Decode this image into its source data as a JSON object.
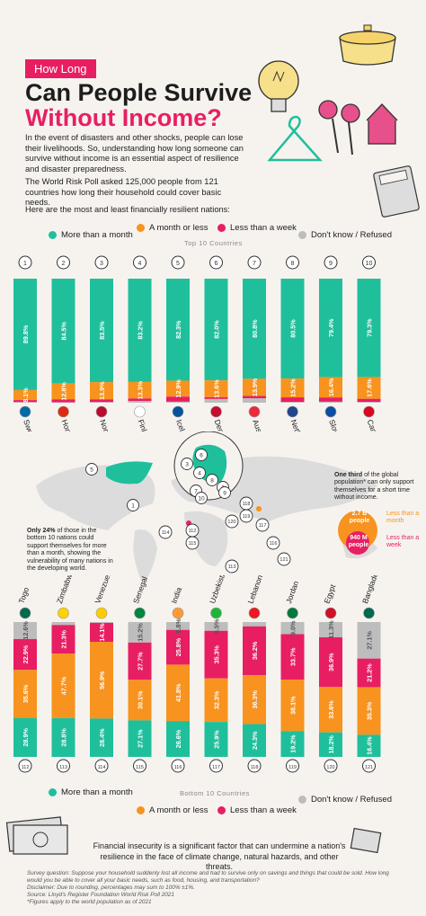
{
  "header": {
    "tag": "How Long",
    "title_line1": "Can People Survive",
    "title_line2": "Without Income?",
    "intro_p1": "In the event of disasters and other shocks, people can lose their livelihoods. So, understanding how long someone can survive without income is an essential aspect of resilience and disaster preparedness.",
    "intro_p2": "The World Risk Poll asked 125,000 people from 121 countries how long their household could cover basic needs.",
    "intro_p3": "Here are the most and least financially resilient nations:"
  },
  "legend": {
    "items": [
      "More than a month",
      "A month or less",
      "Less than a week",
      "Don't know / Refused"
    ],
    "colors": [
      "#1fbf9c",
      "#f7931e",
      "#e81e63",
      "#bdbdbd"
    ]
  },
  "section_labels": {
    "top": "Top 10 Countries",
    "bottom": "Bottom 10 Countries"
  },
  "chart_data": [
    {
      "type": "bar",
      "title": "Top 10 Countries",
      "ranks": [
        "1",
        "2",
        "3",
        "4",
        "5",
        "6",
        "7",
        "8",
        "9",
        "10"
      ],
      "categories": [
        "Sweden",
        "Hong Kong",
        "Norway",
        "Finland",
        "Iceland",
        "Denmark",
        "Austria",
        "Netherlands",
        "Slovakia",
        "Canada"
      ],
      "series": [
        {
          "name": "More than a month",
          "values": [
            89.8,
            84.5,
            83.5,
            83.2,
            82.3,
            82.0,
            80.8,
            80.5,
            79.4,
            79.3
          ]
        },
        {
          "name": "A month or less",
          "values": [
            8.1,
            12.8,
            13.9,
            13.3,
            12.9,
            13.6,
            13.9,
            15.2,
            16.4,
            17.6
          ]
        },
        {
          "name": "Less than a week",
          "values": [
            1.6,
            2.4,
            2.2,
            2.0,
            4.1,
            1.4,
            1.8,
            3.7,
            3.4,
            2.5
          ]
        },
        {
          "name": "Don't know / Refused",
          "values": [
            0.5,
            0.3,
            0.5,
            1.4,
            0.8,
            3.0,
            3.6,
            0.6,
            0.8,
            0.6
          ]
        }
      ],
      "labels": {
        "more": [
          "89.8%",
          "84.5%",
          "83.5%",
          "83.2%",
          "82.3%",
          "82.0%",
          "80.8%",
          "80.5%",
          "79.4%",
          "79.3%"
        ],
        "month": [
          "8.1%",
          "12.8%",
          "13.9%",
          "13.3%",
          "12.9%",
          "13.6%",
          "13.9%",
          "15.2%",
          "16.4%",
          "17.6%"
        ]
      }
    },
    {
      "type": "bar",
      "title": "Bottom 10 Countries",
      "ranks": [
        "112",
        "113",
        "114",
        "115",
        "116",
        "117",
        "118",
        "119",
        "120",
        "121"
      ],
      "categories": [
        "Togo",
        "Zimbabwe",
        "Venezuela",
        "Senegal",
        "India",
        "Uzbekistan",
        "Lebanon",
        "Jordan",
        "Egypt",
        "Bangladesh"
      ],
      "series": [
        {
          "name": "More than a month",
          "values": [
            28.9,
            28.8,
            28.4,
            27.1,
            26.6,
            25.9,
            24.3,
            19.2,
            18.2,
            16.4
          ]
        },
        {
          "name": "A month or less",
          "values": [
            35.6,
            47.7,
            56.9,
            30.1,
            41.8,
            32.3,
            36.3,
            38.1,
            33.6,
            35.3
          ]
        },
        {
          "name": "Less than a week",
          "values": [
            22.9,
            21.3,
            14.1,
            27.7,
            25.8,
            35.3,
            36.2,
            33.7,
            36.9,
            21.2
          ]
        },
        {
          "name": "Don't know / Refused",
          "values": [
            12.6,
            2.2,
            0.6,
            15.2,
            5.8,
            6.5,
            3.2,
            9.0,
            11.3,
            27.1
          ]
        }
      ],
      "labels": {
        "more": [
          "28.9%",
          "28.8%",
          "28.4%",
          "27.1%",
          "26.6%",
          "25.9%",
          "24.3%",
          "19.2%",
          "18.2%",
          "16.4%"
        ],
        "month": [
          "35.6%",
          "47.7%",
          "56.9%",
          "30.1%",
          "41.8%",
          "32.3%",
          "36.3%",
          "38.1%",
          "33.6%",
          "35.3%"
        ],
        "week": [
          "22.9%",
          "21.3%",
          "14.1%",
          "27.7%",
          "25.8%",
          "35.3%",
          "36.2%",
          "33.7%",
          "36.9%",
          "21.2%"
        ],
        "dk": [
          "12.6%",
          "2.2%",
          "0.6%",
          "15.2%",
          "5.8%",
          "6.5%",
          "3.2%",
          "9.0%",
          "11.3%",
          "27.1%"
        ]
      }
    }
  ],
  "flag_colors": {
    "top": [
      "#006aa7",
      "#de2910",
      "#ba0c2f",
      "#ffffff",
      "#02529c",
      "#c60c30",
      "#ed2939",
      "#21468b",
      "#0b4ea2",
      "#d80621"
    ],
    "bottom": [
      "#006a4e",
      "#ffd200",
      "#ffcc00",
      "#00853f",
      "#ff9933",
      "#1eb53a",
      "#ee161f",
      "#007a3d",
      "#ce1126",
      "#006a4e"
    ]
  },
  "map": {
    "top_markers": [
      "1",
      "2",
      "3",
      "4",
      "5",
      "6",
      "7",
      "8",
      "9",
      "10"
    ],
    "bottom_markers": [
      "112",
      "113",
      "114",
      "115",
      "116",
      "117",
      "118",
      "119",
      "120",
      "121"
    ],
    "annotation_right_bold": "One third",
    "annotation_right": "of the global population* can only support themselves for a short time without income.",
    "donut_orange_value": "2.7 B",
    "donut_orange_unit": "people",
    "donut_orange_label": "Less than a month",
    "donut_pink_value": "940 M",
    "donut_pink_unit": "people",
    "donut_pink_label": "Less than a week",
    "annotation_left_bold": "Only 24%",
    "annotation_left": "of those in the bottom 10 nations could support themselves for more than a month, showing the vulnerability of many nations in the developing world."
  },
  "footer": {
    "main": "Financial insecurity is a significant factor that can undermine a nation's resilience in the face of climate change, natural hazards, and other threats.",
    "survey_q": "Survey question: Suppose your household suddenly lost all income and had to survive only on savings and things that could be sold. How long would you be able to cover all your basic needs, such as food, housing, and transportation?",
    "disclaimer": "Disclaimer: Due to rounding, percentages may sum to 100% ±1%.",
    "source": "Source: Lloyd's Register Foundation World Risk Poll 2021",
    "note": "*Figures apply to the world population as of 2021"
  }
}
